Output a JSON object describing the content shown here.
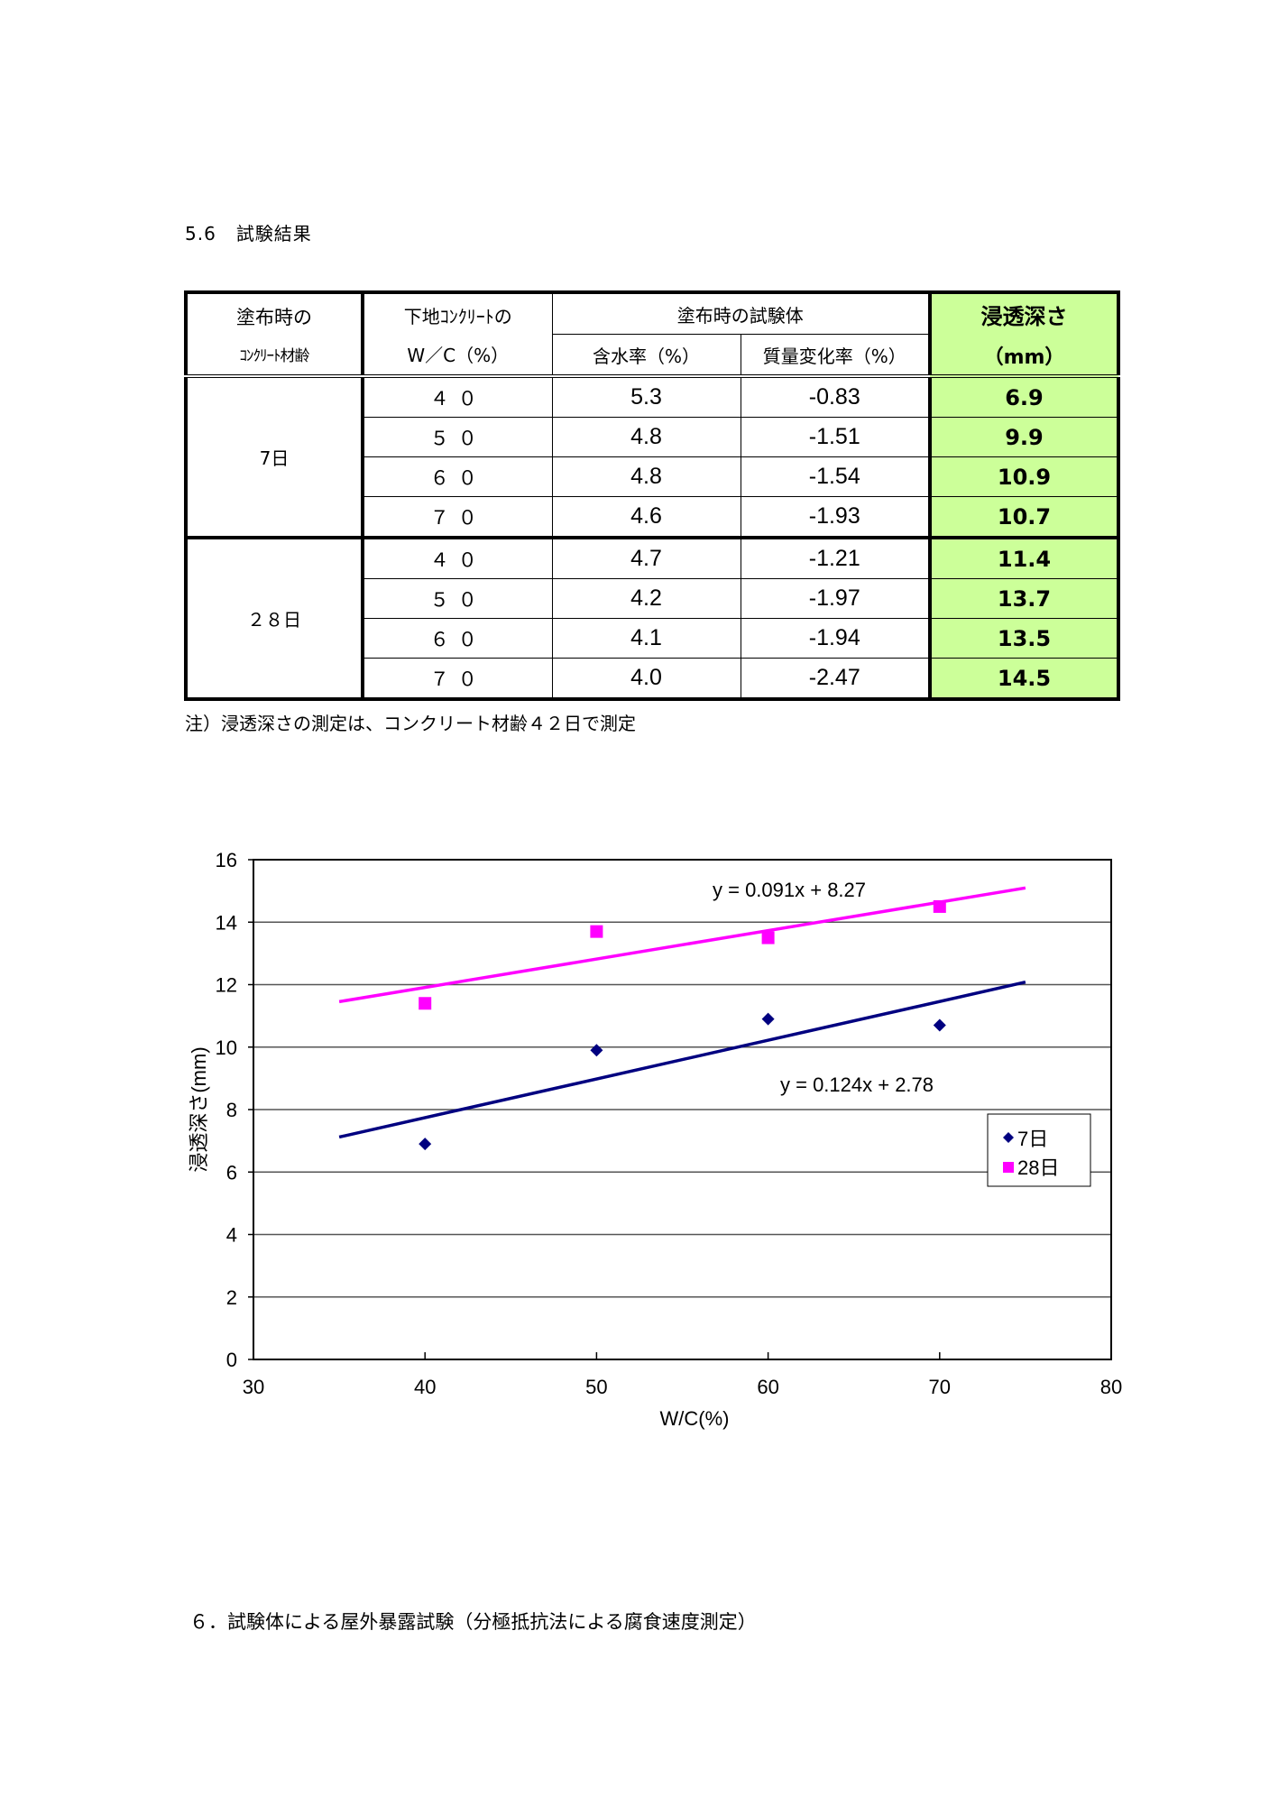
{
  "section": {
    "number": "5.6",
    "title": "試験結果"
  },
  "table": {
    "headers": {
      "age_line1": "塗布時の",
      "age_line2": "ｺﾝｸﾘｰﾄ材齢",
      "wc_line1": "下地ｺﾝｸﾘｰﾄの",
      "wc_line2": "W／C（%）",
      "specimen_group": "塗布時の試験体",
      "moisture": "含水率（%）",
      "mass_change": "質量変化率（%）",
      "depth_line1": "浸透深さ",
      "depth_line2": "（mm）"
    },
    "groups": [
      {
        "age": "7日",
        "rows": [
          {
            "wc": "４０",
            "moisture": "5.3",
            "mass_change": "-0.83",
            "depth": "6.9"
          },
          {
            "wc": "５０",
            "moisture": "4.8",
            "mass_change": "-1.51",
            "depth": "9.9"
          },
          {
            "wc": "６０",
            "moisture": "4.8",
            "mass_change": "-1.54",
            "depth": "10.9"
          },
          {
            "wc": "７０",
            "moisture": "4.6",
            "mass_change": "-1.93",
            "depth": "10.7"
          }
        ]
      },
      {
        "age": "２８日",
        "rows": [
          {
            "wc": "４０",
            "moisture": "4.7",
            "mass_change": "-1.21",
            "depth": "11.4"
          },
          {
            "wc": "５０",
            "moisture": "4.2",
            "mass_change": "-1.97",
            "depth": "13.7"
          },
          {
            "wc": "６０",
            "moisture": "4.1",
            "mass_change": "-1.94",
            "depth": "13.5"
          },
          {
            "wc": "７０",
            "moisture": "4.0",
            "mass_change": "-2.47",
            "depth": "14.5"
          }
        ]
      }
    ],
    "highlight_color": "#ccff99"
  },
  "note": "注）浸透深さの測定は、コンクリート材齢４２日で測定",
  "chart_data": {
    "type": "scatter",
    "title": "",
    "xlabel": "W/C(%)",
    "ylabel": "浸透深さ(mm)",
    "xlim": [
      30,
      80
    ],
    "ylim": [
      0,
      16
    ],
    "xticks": [
      "30",
      "40",
      "50",
      "60",
      "70",
      "80"
    ],
    "yticks": [
      "0",
      "2",
      "4",
      "6",
      "8",
      "10",
      "12",
      "14",
      "16"
    ],
    "grid": "horizontal",
    "legend_position": "right-inside",
    "series": [
      {
        "name": "7日",
        "marker": "diamond",
        "color": "#000080",
        "x": [
          40,
          50,
          60,
          70
        ],
        "y": [
          6.9,
          9.9,
          10.9,
          10.7
        ],
        "trendline": {
          "equation": "y = 0.124x + 2.78",
          "slope": 0.124,
          "intercept": 2.78,
          "x_range": [
            35,
            75
          ]
        }
      },
      {
        "name": "28日",
        "marker": "square",
        "color": "#ff00ff",
        "x": [
          40,
          50,
          60,
          70
        ],
        "y": [
          11.4,
          13.7,
          13.5,
          14.5
        ],
        "trendline": {
          "equation": "y = 0.091x + 8.27",
          "slope": 0.091,
          "intercept": 8.27,
          "x_range": [
            35,
            75
          ]
        }
      }
    ]
  },
  "next_section": {
    "title": "６．試験体による屋外暴露試験（分極抵抗法による腐食速度測定）"
  }
}
